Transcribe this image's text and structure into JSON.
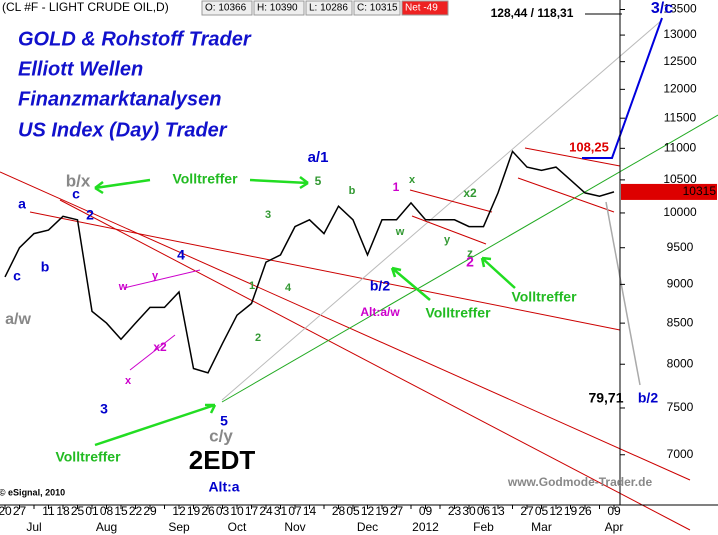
{
  "chart_data": {
    "type": "line",
    "header": {
      "symbol": "(CL #F - LIGHT CRUDE OIL,D)",
      "open": "O: 10366",
      "high": "H: 10390",
      "low": "L: 10286",
      "close": "C: 10315",
      "net": "Net -49"
    },
    "titles": [
      "GOLD & Rohstoff Trader",
      "Elliott Wellen",
      "Finanzmarktanalysen",
      "US Index (Day) Trader"
    ],
    "categories": [
      "20",
      "27",
      null,
      "11",
      "18",
      "25",
      "01",
      "08",
      "15",
      "22",
      "29",
      null,
      "12",
      "19",
      "26",
      "03",
      "10",
      "17",
      "24",
      "31",
      "07",
      "14",
      null,
      "28",
      "05",
      "12",
      "19",
      "27",
      null,
      "09",
      null,
      "23",
      "30",
      "06",
      "13",
      null,
      "27",
      "05",
      "12",
      "19",
      "26",
      null,
      "09"
    ],
    "month_labels": [
      null,
      null,
      "Jul",
      null,
      null,
      null,
      null,
      "Aug",
      null,
      null,
      null,
      null,
      "Sep",
      null,
      null,
      null,
      "Oct",
      null,
      null,
      null,
      "Nov",
      null,
      null,
      null,
      null,
      "Dec",
      null,
      null,
      null,
      "2012",
      null,
      null,
      null,
      "Feb",
      null,
      null,
      null,
      "Mar",
      null,
      null,
      null,
      null,
      "Apr"
    ],
    "series": [
      {
        "name": "CL #F",
        "color": "#000000",
        "values": [
          9100,
          9500,
          9700,
          9750,
          9950,
          9900,
          8650,
          8500,
          8300,
          8500,
          8700,
          8700,
          8900,
          7950,
          7900,
          8250,
          8600,
          8750,
          9300,
          9400,
          9800,
          9900,
          9700,
          10100,
          9900,
          9400,
          9900,
          9900,
          10150,
          9900,
          9900,
          9900,
          9800,
          9800,
          10300,
          10950,
          10700,
          10650,
          10700,
          10500,
          10300,
          10250,
          10315
        ]
      }
    ],
    "last_price": 10315,
    "last_price_color": "#dd0000",
    "log_scale": true,
    "ylim": [
      6500,
      13650
    ],
    "yticks": [
      7000,
      7500,
      8000,
      8500,
      9000,
      9500,
      10000,
      10500,
      11000,
      11500,
      12000,
      12500,
      13000,
      13500
    ],
    "annotations": [
      {
        "text": "a/1",
        "color": "#0000cc"
      },
      {
        "text": "5",
        "color": "#339933"
      },
      {
        "text": "b/x",
        "color": "#888888"
      },
      {
        "text": "c",
        "color": "#0000cc"
      },
      {
        "text": "2",
        "color": "#0000cc"
      },
      {
        "text": "a",
        "color": "#0000cc"
      },
      {
        "text": "b",
        "color": "#0000cc"
      },
      {
        "text": "c",
        "color": "#0000cc"
      },
      {
        "text": "a/w",
        "color": "#888888"
      },
      {
        "text": "3",
        "color": "#0000cc"
      },
      {
        "text": "4",
        "color": "#0000cc"
      },
      {
        "text": "5",
        "color": "#0000cc"
      },
      {
        "text": "c/y",
        "color": "#888888"
      },
      {
        "text": "2EDT",
        "color": "#000000"
      },
      {
        "text": "Alt:a",
        "color": "#0000cc"
      },
      {
        "text": "b/2",
        "color": "#0000cc"
      },
      {
        "text": "Alt:a/w",
        "color": "#cc00cc"
      },
      {
        "text": "2",
        "color": "#cc00cc"
      },
      {
        "text": "3/c",
        "color": "#0000cc"
      },
      {
        "text": "128,44 / 118,31",
        "color": "#000000"
      },
      {
        "text": "79,71",
        "color": "#000000"
      },
      {
        "text": "b/2",
        "color": "#0000cc"
      },
      {
        "text": "108,25",
        "color": "#dd0000"
      },
      {
        "text": "www.Godmode-Trader.de",
        "color": "#888888"
      },
      {
        "text": "© eSignal, 2010",
        "color": "#000000"
      },
      {
        "text": "Volltreffer",
        "color": "#22bb22"
      },
      {
        "text": "Volltreffer",
        "color": "#22bb22"
      },
      {
        "text": "Volltreffer",
        "color": "#22bb22"
      },
      {
        "text": "Volltreffer",
        "color": "#22bb22"
      },
      {
        "text": "Volltreffer",
        "color": "#22bb22"
      },
      {
        "text": "x2",
        "color": "#cc00cc"
      },
      {
        "text": "x",
        "color": "#cc00cc"
      },
      {
        "text": "w",
        "color": "#cc00cc"
      },
      {
        "text": "y",
        "color": "#cc00cc"
      },
      {
        "text": "b",
        "color": "#339933"
      },
      {
        "text": "1",
        "color": "#cc00cc"
      },
      {
        "text": "x2",
        "color": "#339933"
      },
      {
        "text": "z",
        "color": "#339933"
      },
      {
        "text": "x",
        "color": "#339933"
      },
      {
        "text": "w",
        "color": "#339933"
      },
      {
        "text": "y",
        "color": "#339933"
      },
      {
        "text": "1",
        "color": "#339933"
      },
      {
        "text": "2",
        "color": "#339933"
      },
      {
        "text": "3",
        "color": "#339933"
      },
      {
        "text": "4",
        "color": "#339933"
      }
    ]
  }
}
